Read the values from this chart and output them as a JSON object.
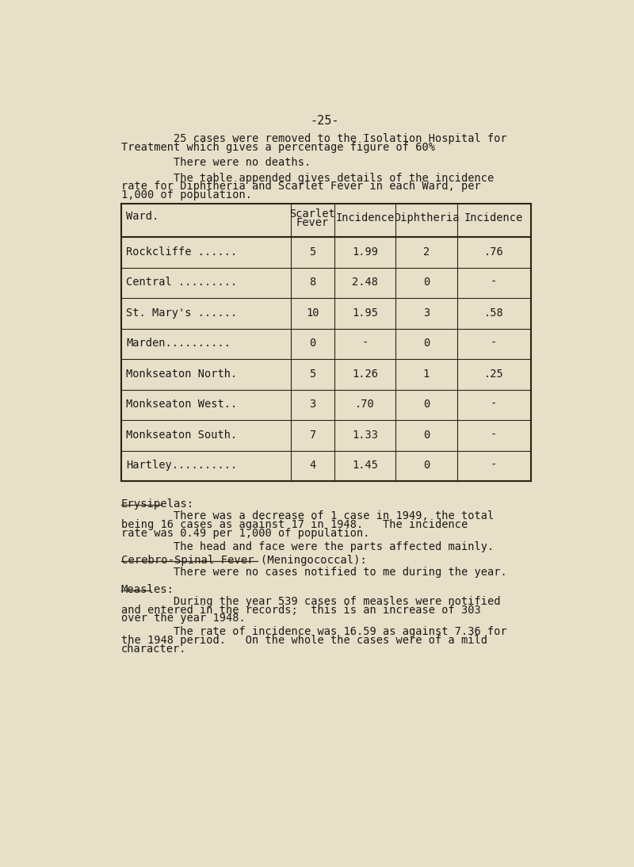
{
  "background_color": "#e8dfc8",
  "page_title": "-25-",
  "para1_indent": "        25 cases were removed to the Isolation Hospital for",
  "para1_cont": "Treatment which gives a percentage figure of 60%",
  "para2": "        There were no deaths.",
  "para3_indent": "        The table appended gives details of the incidence",
  "para3_l2": "rate for Diphtheria and Scarlet Fever in each Ward, per",
  "para3_l3": "1,000 of population.",
  "table_headers": [
    "Ward.",
    "Scarlet\nFever",
    "Incidence",
    "Diphtheria",
    "Incidence"
  ],
  "table_rows": [
    [
      "Rockcliffe ......",
      "5",
      "1.99",
      "2",
      ".76"
    ],
    [
      "Central .........",
      "8",
      "2.48",
      "0",
      "-"
    ],
    [
      "St. Mary's ......",
      "10",
      "1.95",
      "3",
      ".58"
    ],
    [
      "Marden..........",
      "0",
      "-",
      "0",
      "-"
    ],
    [
      "Monkseaton North.",
      "5",
      "1.26",
      "1",
      ".25"
    ],
    [
      "Monkseaton West..",
      "3",
      ".70",
      "0",
      "-"
    ],
    [
      "Monkseaton South.",
      "7",
      "1.33",
      "0",
      "-"
    ],
    [
      "Hartley..........",
      "4",
      "1.45",
      "0",
      "-"
    ]
  ],
  "erysipelas_heading": "Erysipelas:",
  "ery_p1_l1": "        There was a decrease of 1 case in 1949, the total",
  "ery_p1_l2": "being 16 cases as against 17 in 1948.   The incidence",
  "ery_p1_l3": "rate was 0.49 per 1,000 of population.",
  "ery_p2": "        The head and face were the parts affected mainly.",
  "cerebro_heading": "Cerebro-Spinal Fever (Meningococcal):",
  "cerebro_para": "        There were no cases notified to me during the year.",
  "measles_heading": "Measles:",
  "meas_p1_l1": "        During the year 539 cases of measles were notified",
  "meas_p1_l2": "and entered in the records;  this is an increase of 303",
  "meas_p1_l3": "over the year 1948.",
  "meas_p2_l1": "        The rate of incidence was 16.59 as against 7.36 for",
  "meas_p2_l2": "the 1948 period.   On the whole the cases were of a mild",
  "meas_p2_l3": "character.",
  "text_color": "#1a1a1a",
  "line_color": "#2a2410",
  "font_size": 9.8,
  "font_size_heading": 10.0
}
